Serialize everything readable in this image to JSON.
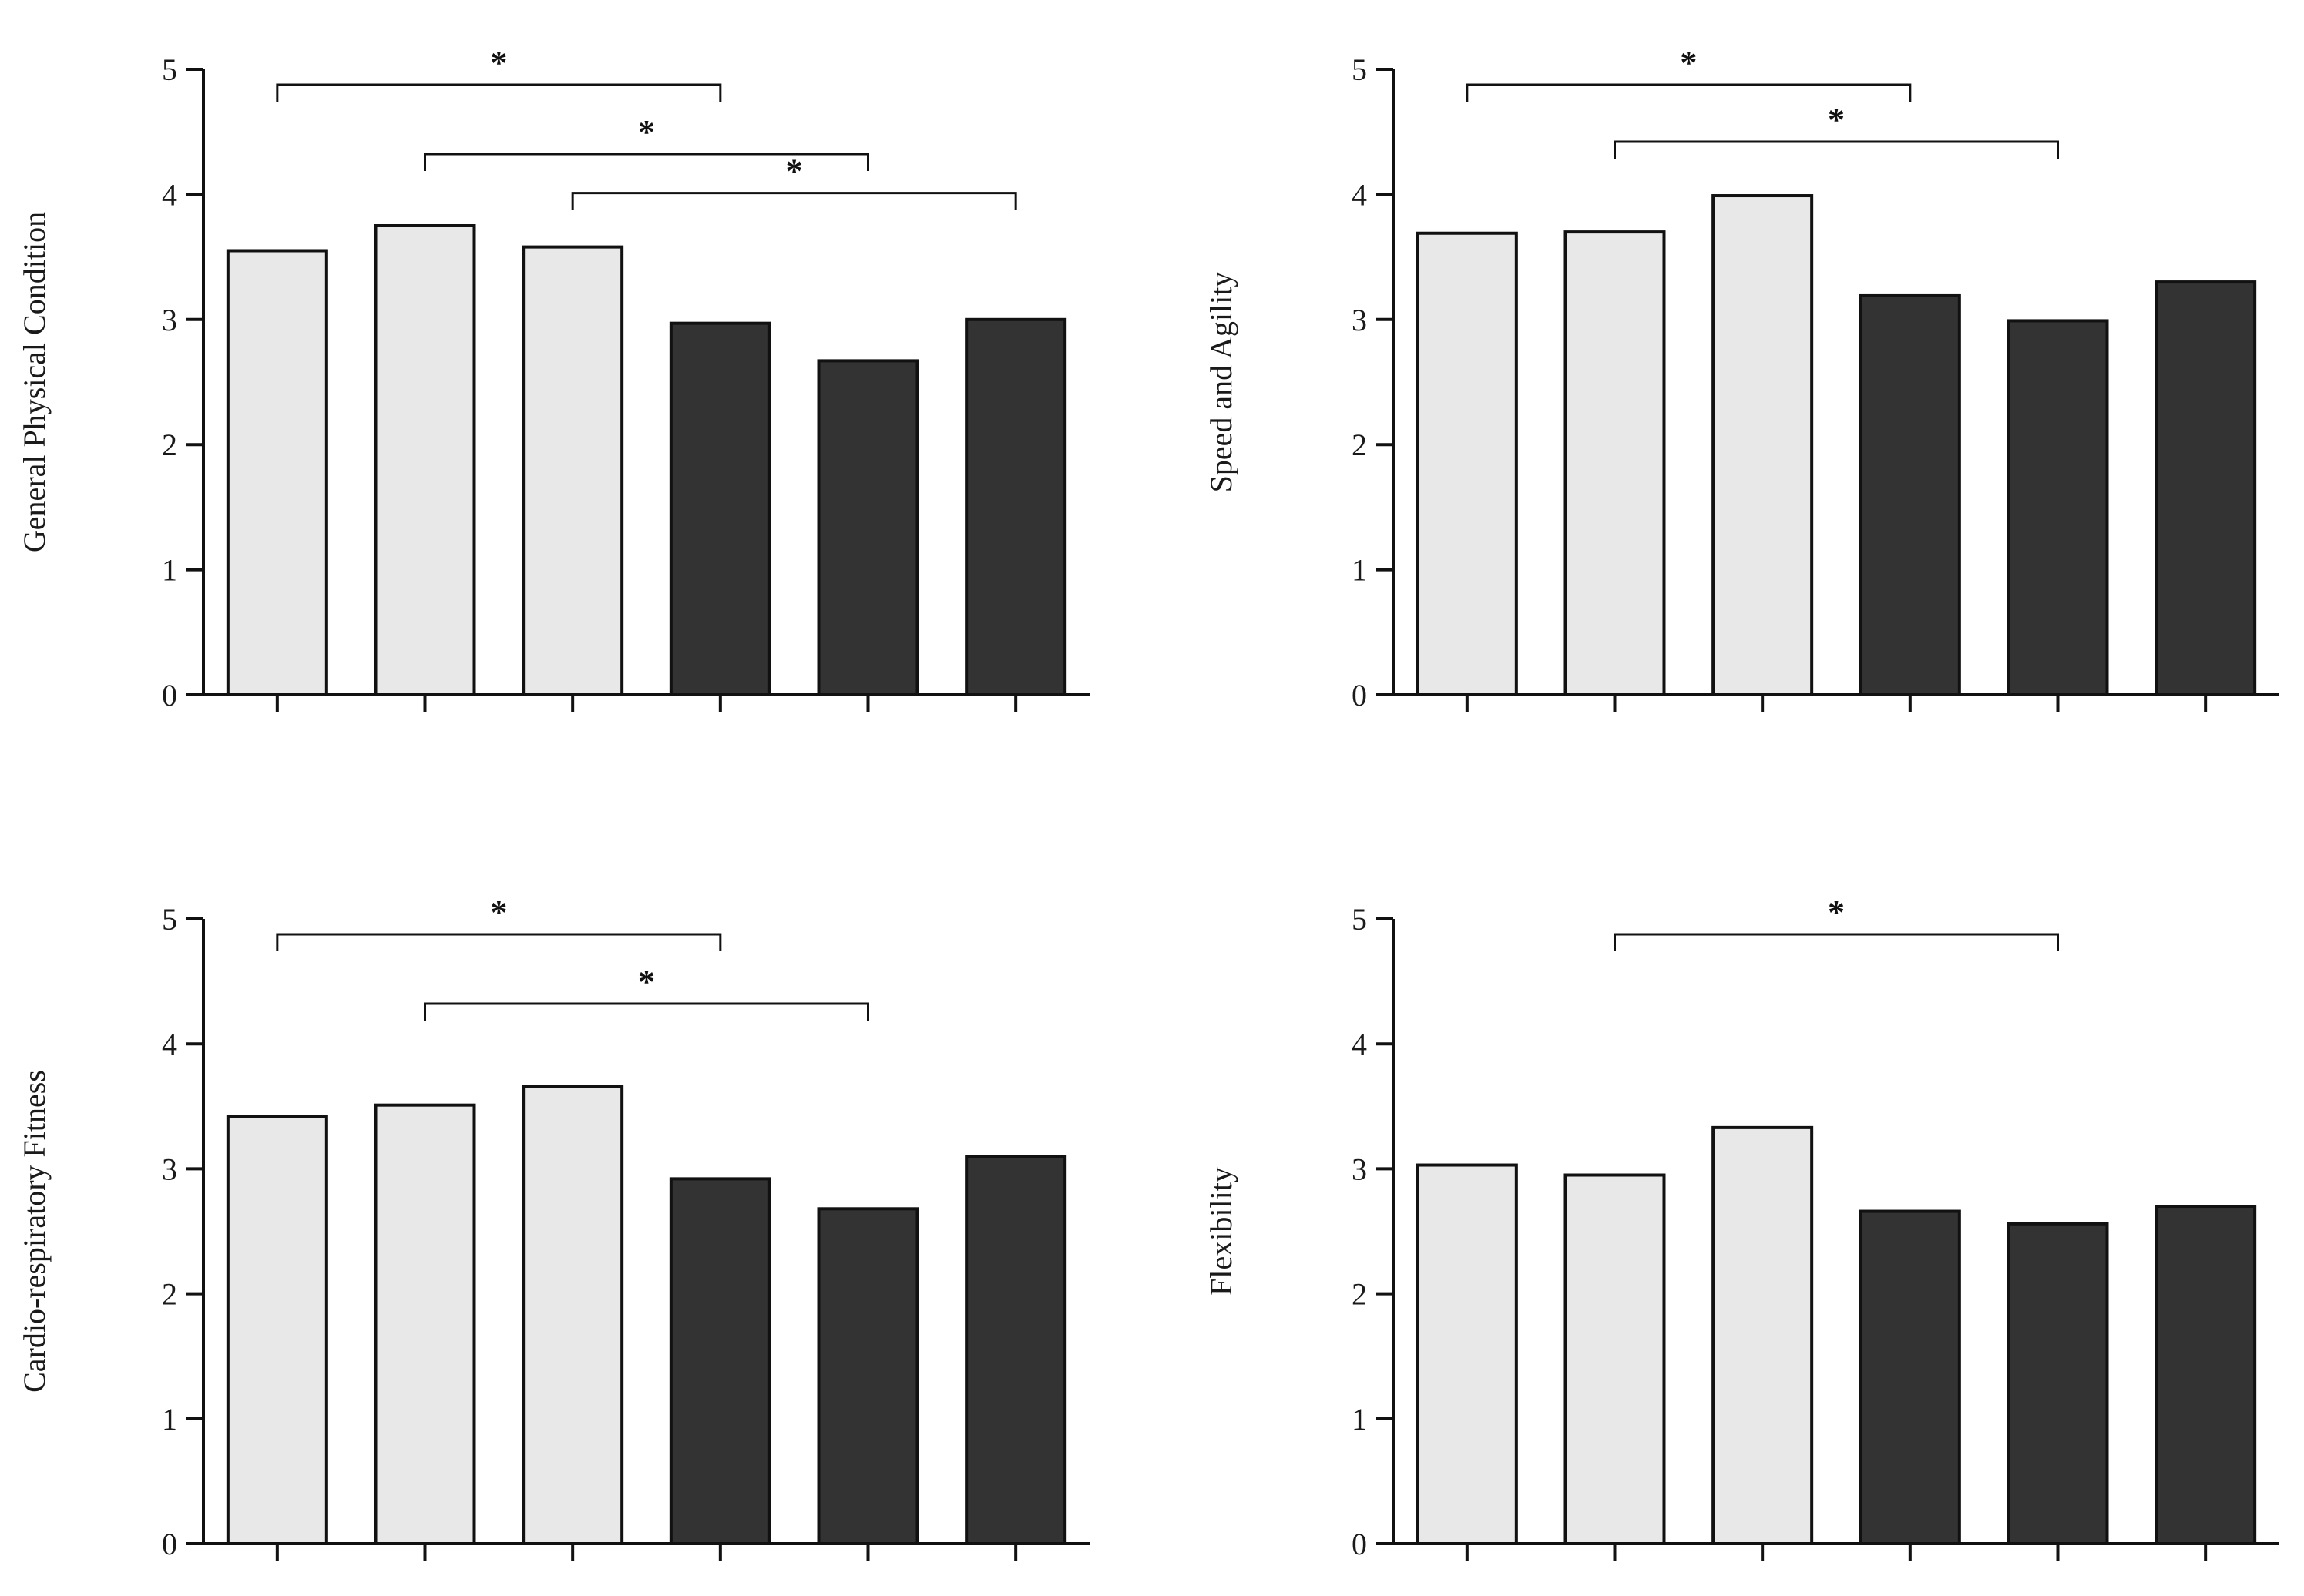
{
  "colors": {
    "light_bar": "#e8e8e8",
    "dark_bar": "#333333",
    "bar_stroke": "#111111",
    "axis": "#111111"
  },
  "chart_data": [
    {
      "type": "bar",
      "ylabel": "General Physical Condition",
      "ylim": [
        0,
        5
      ],
      "yticks": [
        "0",
        "1",
        "2",
        "3",
        "4",
        "5"
      ],
      "values": [
        3.55,
        3.75,
        3.58,
        2.97,
        2.67,
        3.0
      ],
      "groups": [
        "light",
        "light",
        "light",
        "dark",
        "dark",
        "dark"
      ],
      "significance": [
        {
          "from": 0,
          "to": 3,
          "label": "*"
        },
        {
          "from": 1,
          "to": 4,
          "label": "*"
        },
        {
          "from": 2,
          "to": 5,
          "label": "*"
        }
      ]
    },
    {
      "type": "bar",
      "ylabel": "Speed and Agility",
      "ylim": [
        0,
        5
      ],
      "yticks": [
        "0",
        "1",
        "2",
        "3",
        "4",
        "5"
      ],
      "values": [
        3.69,
        3.7,
        3.99,
        3.19,
        2.99,
        3.3
      ],
      "groups": [
        "light",
        "light",
        "light",
        "dark",
        "dark",
        "dark"
      ],
      "significance": [
        {
          "from": 0,
          "to": 3,
          "label": "*"
        },
        {
          "from": 1,
          "to": 4,
          "label": "*"
        }
      ]
    },
    {
      "type": "bar",
      "ylabel": "Cardio-respiratory Fitness",
      "ylim": [
        0,
        5
      ],
      "yticks": [
        "0",
        "1",
        "2",
        "3",
        "4",
        "5"
      ],
      "values": [
        3.42,
        3.51,
        3.66,
        2.92,
        2.68,
        3.1
      ],
      "groups": [
        "light",
        "light",
        "light",
        "dark",
        "dark",
        "dark"
      ],
      "significance": [
        {
          "from": 0,
          "to": 3,
          "label": "*"
        },
        {
          "from": 1,
          "to": 4,
          "label": "*"
        }
      ]
    },
    {
      "type": "bar",
      "ylabel": "Flexibility",
      "ylim": [
        0,
        5
      ],
      "yticks": [
        "0",
        "1",
        "2",
        "3",
        "4",
        "5"
      ],
      "values": [
        3.03,
        2.95,
        3.33,
        2.66,
        2.56,
        2.7
      ],
      "groups": [
        "light",
        "light",
        "light",
        "dark",
        "dark",
        "dark"
      ],
      "significance": [
        {
          "from": 1,
          "to": 4,
          "label": "*"
        }
      ]
    }
  ]
}
